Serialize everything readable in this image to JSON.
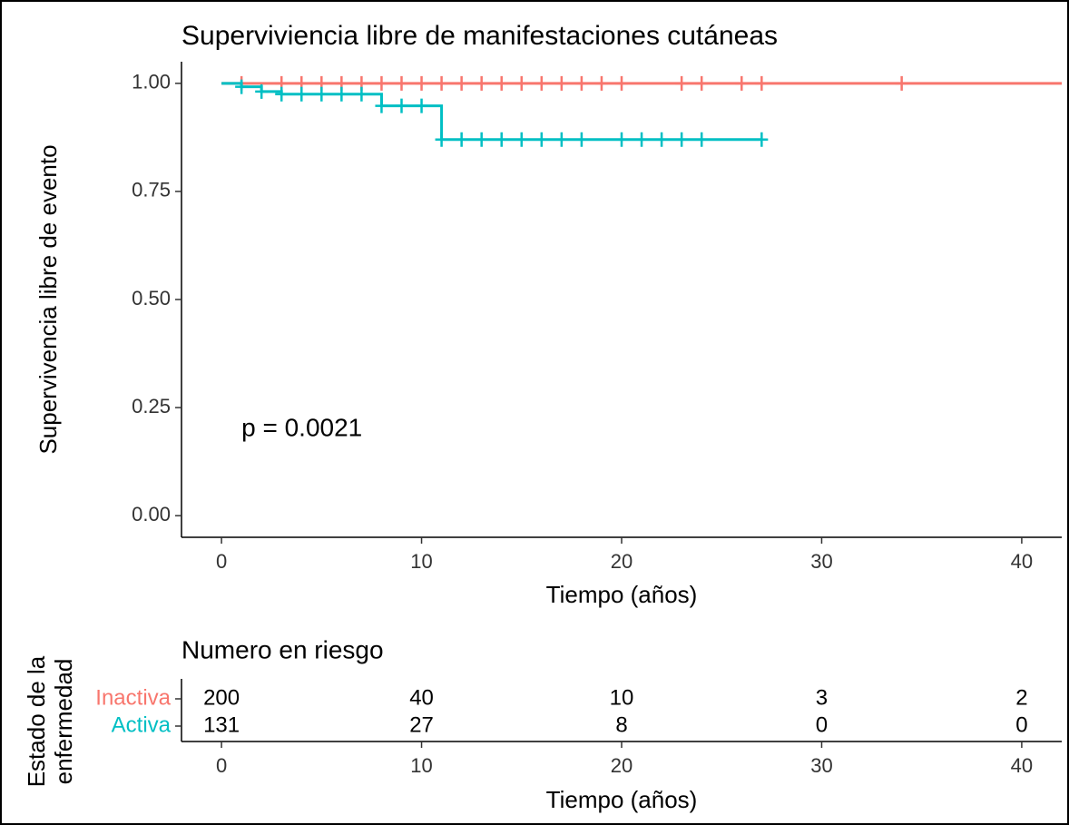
{
  "chart_data": [
    {
      "type": "step",
      "title": "Superviviencia libre de manifestaciones cutáneas",
      "ylabel": "Supervivencia libre de evento",
      "xlabel": "Tiempo (años)",
      "xlim": [
        -2,
        42
      ],
      "xticks": [
        0,
        10,
        20,
        30,
        40
      ],
      "ylim": [
        -0.05,
        1.05
      ],
      "yticks": [
        {
          "value": 0,
          "label": "0.00"
        },
        {
          "value": 0.25,
          "label": "0.25"
        },
        {
          "value": 0.5,
          "label": "0.50"
        },
        {
          "value": 0.75,
          "label": "0.75"
        },
        {
          "value": 1,
          "label": "1.00"
        }
      ],
      "annotation": {
        "text": "p = 0.0021",
        "x": 1,
        "y": 0.2
      },
      "series": [
        {
          "name": "Inactiva",
          "color": "#F8766D",
          "x": [
            0,
            42
          ],
          "values": [
            1,
            1
          ],
          "censor_x": [
            1,
            3,
            4,
            5,
            6,
            7,
            8,
            9,
            10,
            11,
            12,
            13,
            14,
            15,
            16,
            17,
            18,
            19,
            20,
            23,
            24,
            26,
            27,
            34
          ],
          "censor_values": [
            1,
            1,
            1,
            1,
            1,
            1,
            1,
            1,
            1,
            1,
            1,
            1,
            1,
            1,
            1,
            1,
            1,
            1,
            1,
            1,
            1,
            1,
            1,
            1
          ]
        },
        {
          "name": "Activa",
          "color": "#00BFC4",
          "x": [
            0,
            1,
            2,
            3,
            8,
            11,
            27
          ],
          "values": [
            1,
            0.992,
            0.981,
            0.975,
            0.948,
            0.87,
            0.87
          ],
          "censor_x": [
            1,
            2,
            3,
            4,
            5,
            6,
            7,
            8,
            9,
            10,
            11,
            12,
            13,
            14,
            15,
            16,
            17,
            18,
            20,
            21,
            22,
            23,
            24,
            27
          ],
          "censor_values": [
            0.992,
            0.981,
            0.975,
            0.975,
            0.975,
            0.975,
            0.975,
            0.948,
            0.948,
            0.948,
            0.87,
            0.87,
            0.87,
            0.87,
            0.87,
            0.87,
            0.87,
            0.87,
            0.87,
            0.87,
            0.87,
            0.87,
            0.87,
            0.87
          ]
        }
      ]
    },
    {
      "type": "table",
      "title": "Numero en riesgo",
      "legend_title": [
        "Estado de la",
        "enfermedad"
      ],
      "xlabel": "Tiempo (años)",
      "xlim": [
        -2,
        42
      ],
      "xticks": [
        0,
        10,
        20,
        30,
        40
      ],
      "rows": [
        {
          "name": "Inactiva",
          "color": "#F8766D",
          "values": [
            200,
            40,
            10,
            3,
            2
          ]
        },
        {
          "name": "Activa",
          "color": "#00BFC4",
          "values": [
            131,
            27,
            8,
            0,
            0
          ]
        }
      ]
    }
  ]
}
